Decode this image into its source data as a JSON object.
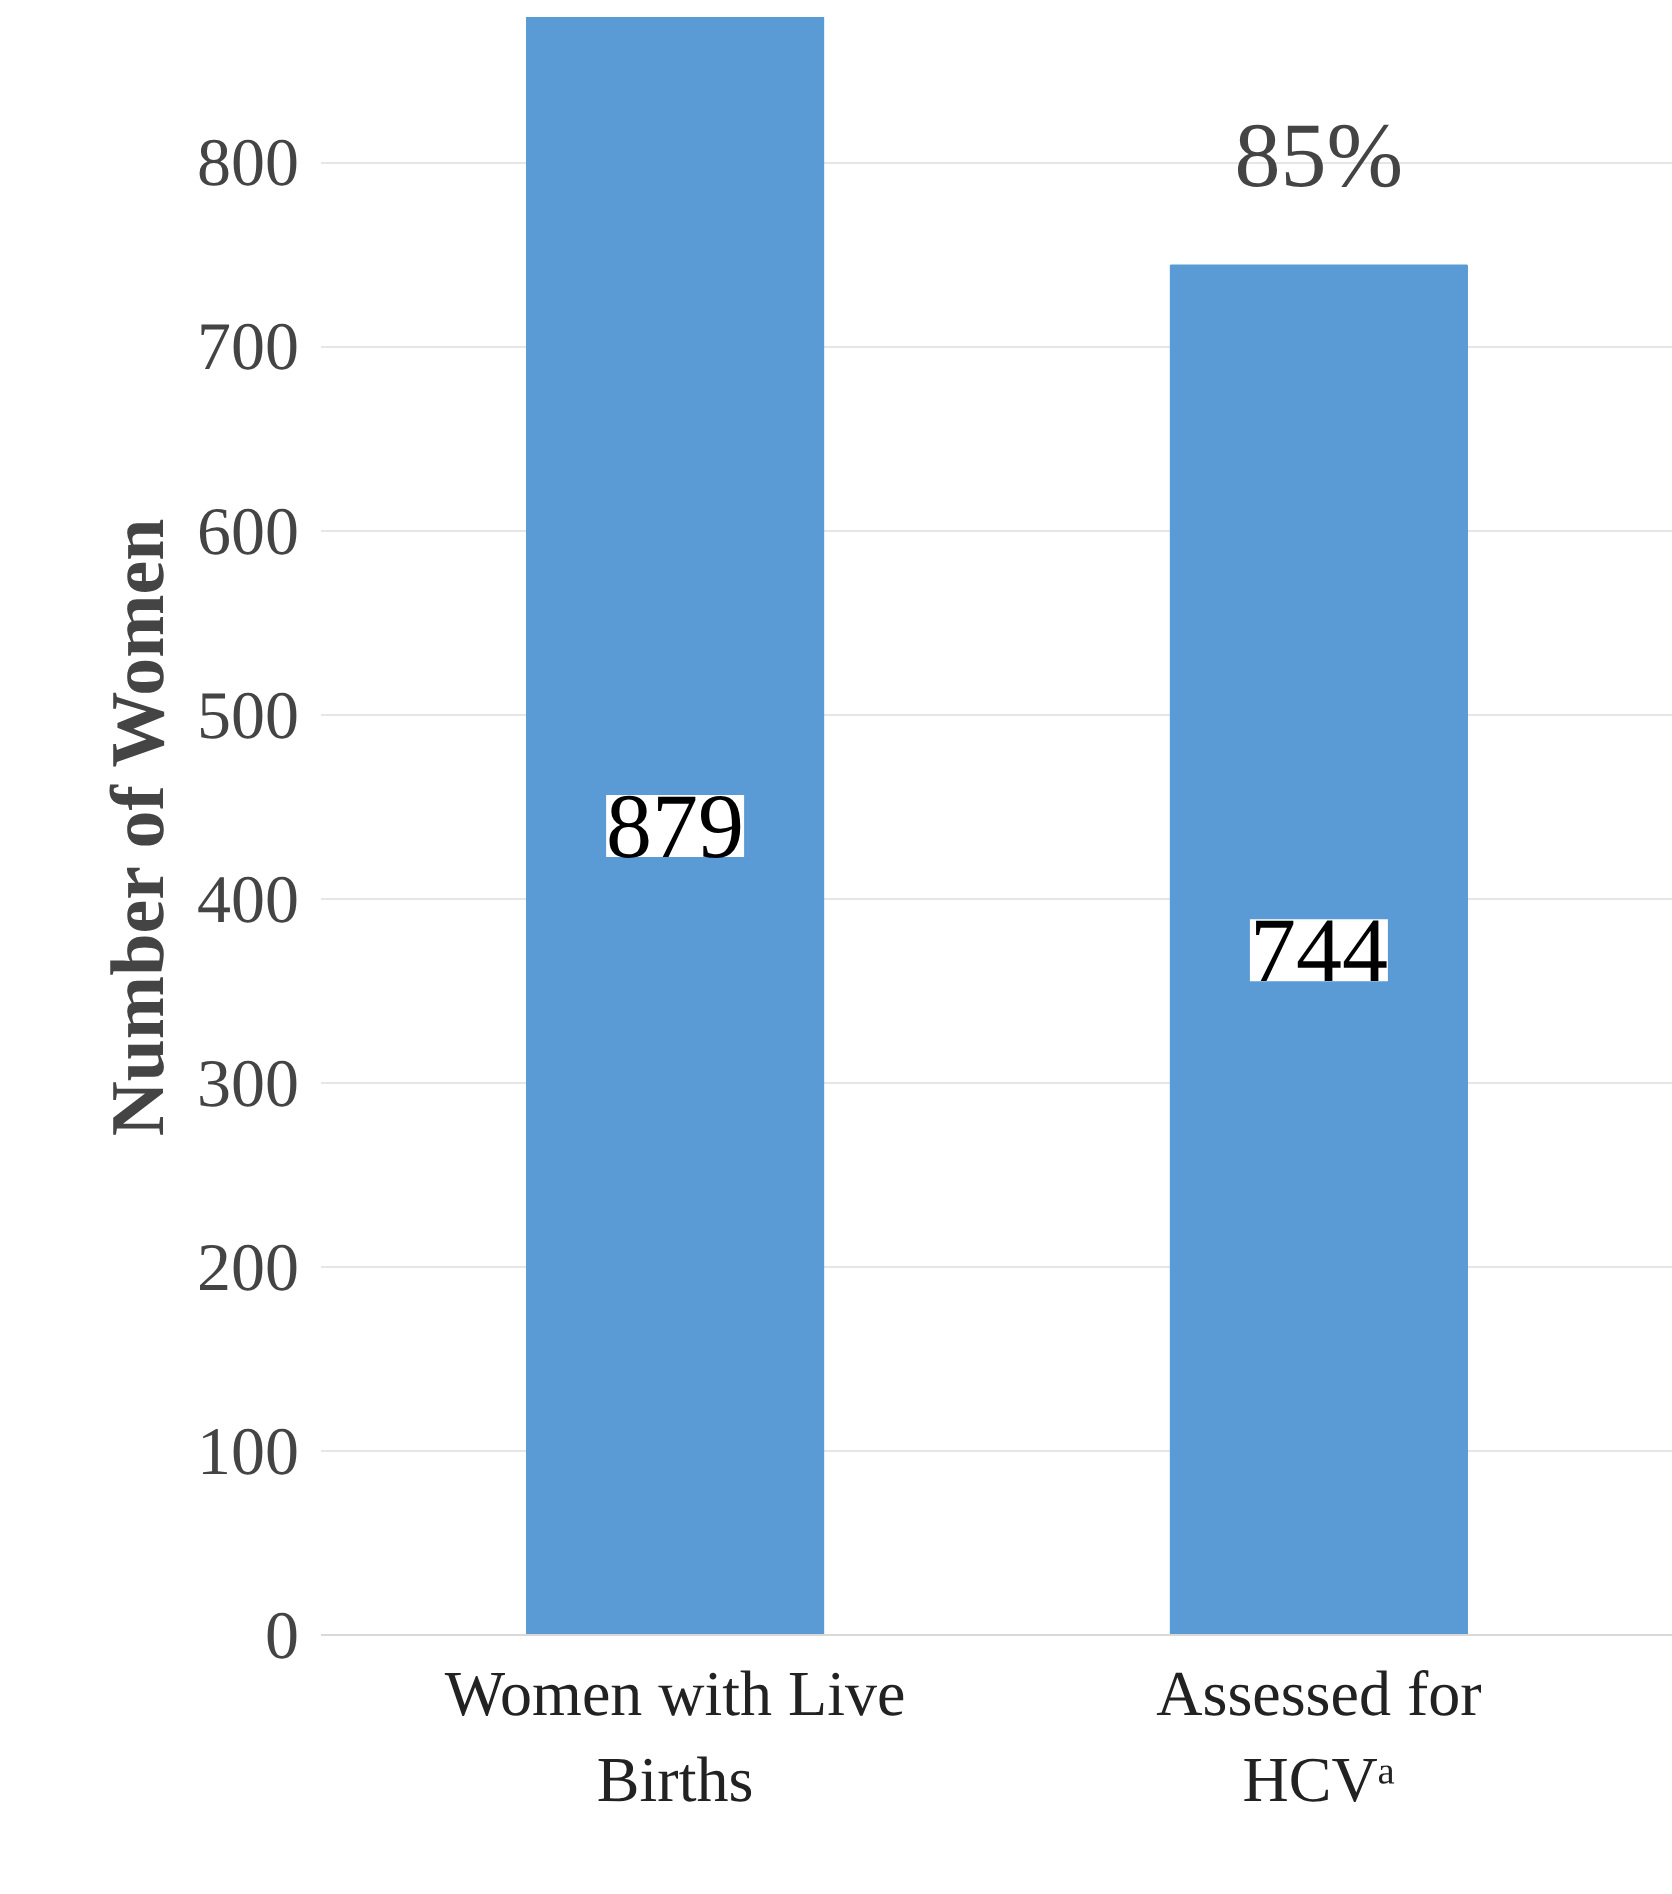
{
  "chart_data": {
    "type": "bar",
    "ylabel": "Number of Women",
    "categories": [
      "Women with Live Births",
      "Assessed for HCVᵃ"
    ],
    "values": [
      879,
      744
    ],
    "color": "#5b9bd5",
    "ylim": [
      0,
      879
    ],
    "yticks": [
      0,
      100,
      200,
      300,
      400,
      500,
      600,
      700,
      800
    ],
    "grid": "y",
    "data_labels": true,
    "annotations": [
      "85%"
    ]
  }
}
